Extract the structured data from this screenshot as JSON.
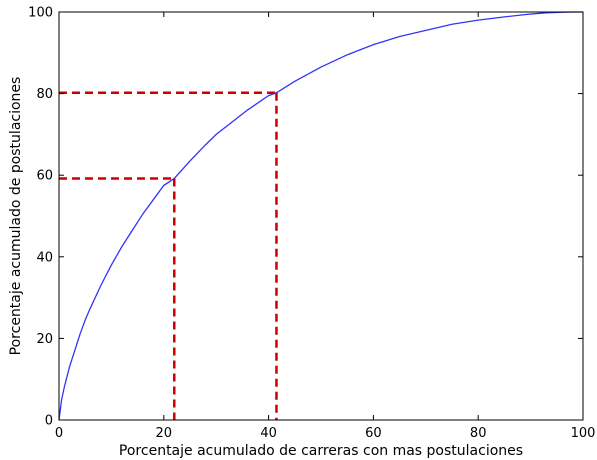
{
  "chart_data": {
    "type": "line",
    "xlabel": "Porcentaje acumulado de carreras con mas postulaciones",
    "ylabel": "Porcentaje acumulado de postulaciones",
    "xlim": [
      0,
      100
    ],
    "ylim": [
      0,
      100
    ],
    "xticks": [
      0,
      20,
      40,
      60,
      80,
      100
    ],
    "yticks": [
      0,
      20,
      40,
      60,
      80,
      100
    ],
    "grid": false,
    "series": [
      {
        "color": "#3333ff",
        "x": [
          0,
          0.5,
          1,
          2,
          3,
          4,
          5,
          6,
          8,
          10,
          12,
          14,
          16,
          18,
          20,
          22,
          25,
          28,
          30,
          33,
          36,
          40,
          41.5,
          45,
          50,
          55,
          60,
          65,
          70,
          75,
          80,
          85,
          90,
          93,
          96,
          98,
          100
        ],
        "y": [
          0,
          5,
          8,
          13,
          17,
          21,
          24.5,
          27.5,
          33,
          38,
          42.5,
          46.5,
          50.5,
          54,
          57.5,
          59.2,
          63.5,
          67.5,
          70,
          73,
          76,
          79.5,
          80.2,
          83,
          86.5,
          89.5,
          92,
          94,
          95.5,
          97,
          98,
          98.8,
          99.5,
          99.8,
          99.95,
          100,
          100
        ]
      }
    ],
    "reference_lines": [
      {
        "x": 22,
        "y": 59.2,
        "color": "#cc0000"
      },
      {
        "x": 41.5,
        "y": 80.2,
        "color": "#cc0000"
      }
    ]
  }
}
